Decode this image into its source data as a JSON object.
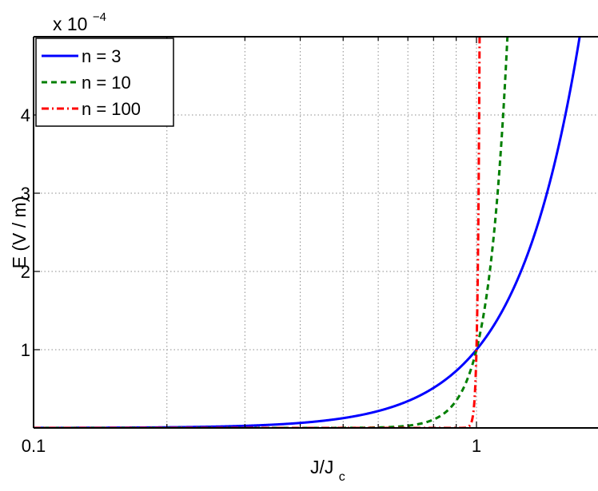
{
  "chart_data": {
    "type": "line",
    "xscale": "log",
    "xlim": [
      0.1,
      2.0
    ],
    "ylim": [
      0,
      0.0005
    ],
    "grid": true,
    "legend_placement": "top-left",
    "xlabel": "J/J",
    "xlabel_subscript": "c",
    "ylabel": "E (V / m)",
    "y_multiplier_base": "x 10",
    "y_multiplier_exponent": "−4",
    "x_ticks": [
      {
        "value": 0.1,
        "label": "0.1"
      },
      {
        "value": 1,
        "label": "1"
      }
    ],
    "y_ticks": [
      {
        "value": 0.0001,
        "label": "1"
      },
      {
        "value": 0.0002,
        "label": "2"
      },
      {
        "value": 0.0003,
        "label": "3"
      },
      {
        "value": 0.0004,
        "label": "4"
      }
    ],
    "Ec": 0.0001,
    "series": [
      {
        "name": "n = 3",
        "n": 3,
        "color": "#0000ff",
        "dash": "solid"
      },
      {
        "name": "n = 10",
        "n": 10,
        "color": "#007f00",
        "dash": "dashed"
      },
      {
        "name": "n = 100",
        "n": 100,
        "color": "#ff0000",
        "dash": "dashdot"
      }
    ]
  }
}
